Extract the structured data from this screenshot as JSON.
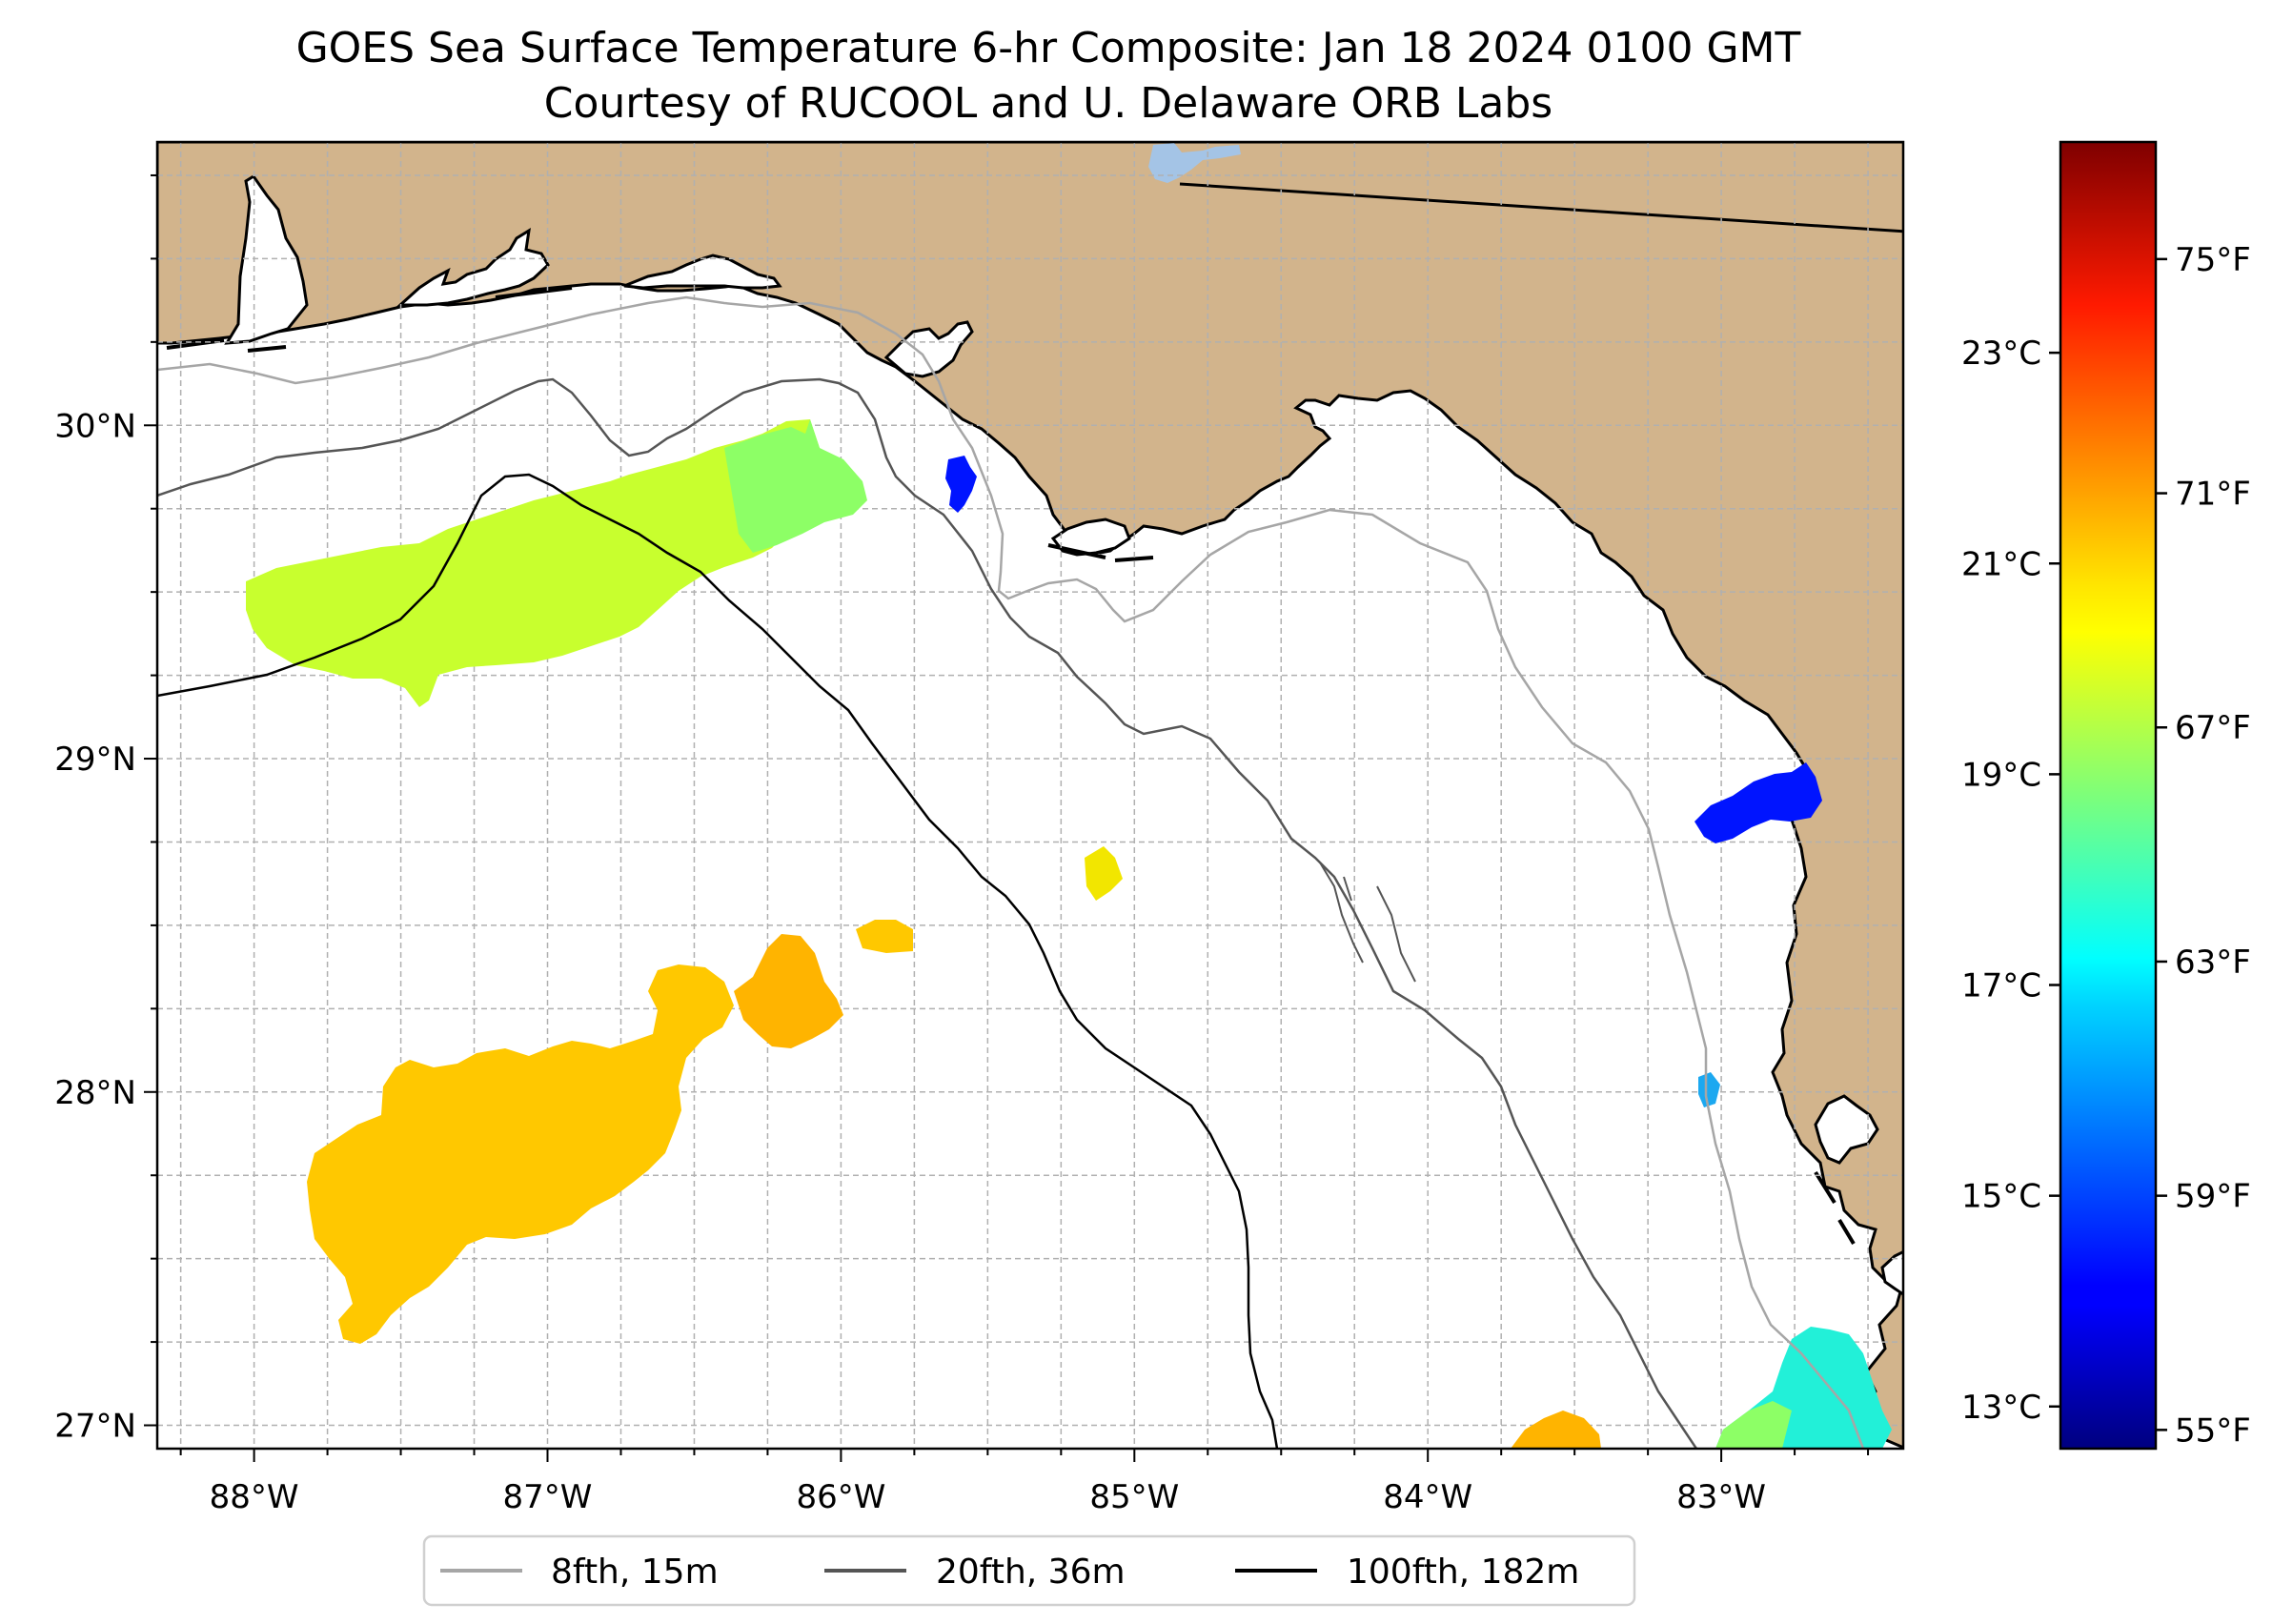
{
  "title": {
    "line1": "GOES Sea Surface Temperature 6-hr Composite: Jan 18 2024 0100 GMT",
    "line2": "Courtesy of RUCOOL and U. Delaware ORB Labs"
  },
  "map": {
    "extent": {
      "lon_min": -88.33,
      "lon_max": -82.38,
      "lat_min": 26.93,
      "lat_max": 30.85
    },
    "land_color": "#d2b48c",
    "ocean_color": "#ffffff",
    "gridlines": true,
    "lon_ticks": [
      {
        "value": -88,
        "label": "88°W"
      },
      {
        "value": -87,
        "label": "87°W"
      },
      {
        "value": -86,
        "label": "86°W"
      },
      {
        "value": -85,
        "label": "85°W"
      },
      {
        "value": -84,
        "label": "84°W"
      },
      {
        "value": -83,
        "label": "83°W"
      }
    ],
    "lat_ticks": [
      {
        "value": 27,
        "label": "27°N"
      },
      {
        "value": 28,
        "label": "28°N"
      },
      {
        "value": 29,
        "label": "29°N"
      },
      {
        "value": 30,
        "label": "30°N"
      }
    ]
  },
  "legend": {
    "placement": "bottom-center",
    "entries": [
      {
        "label": "8fth, 15m",
        "color": "#a6a6a6"
      },
      {
        "label": "20fth, 36m",
        "color": "#555555"
      },
      {
        "label": "100fth, 182m",
        "color": "#000000"
      }
    ]
  },
  "colorbar": {
    "colormap": "jet",
    "celsius_range": [
      12.6,
      25.0
    ],
    "celsius_ticks": [
      {
        "value": 13,
        "label": "13°C"
      },
      {
        "value": 15,
        "label": "15°C"
      },
      {
        "value": 17,
        "label": "17°C"
      },
      {
        "value": 19,
        "label": "19°C"
      },
      {
        "value": 21,
        "label": "21°C"
      },
      {
        "value": 23,
        "label": "23°C"
      }
    ],
    "fahrenheit_ticks": [
      {
        "value": 55,
        "label": "55°F"
      },
      {
        "value": 59,
        "label": "59°F"
      },
      {
        "value": 63,
        "label": "63°F"
      },
      {
        "value": 67,
        "label": "67°F"
      },
      {
        "value": 71,
        "label": "71°F"
      },
      {
        "value": 75,
        "label": "75°F"
      }
    ]
  },
  "sst_patches": [
    {
      "region": "northwest-shelf",
      "temp_f": 67.5,
      "color": "#c8ff2e"
    },
    {
      "region": "east-of-northwest-shelf",
      "temp_f": 66.2,
      "color": "#8dff66"
    },
    {
      "region": "southwest-gulf",
      "temp_f": 70.0,
      "color": "#ffc800"
    },
    {
      "region": "south-center",
      "temp_f": 70.5,
      "color": "#ffb400"
    },
    {
      "region": "small-central",
      "temp_f": 69.0,
      "color": "#f2e600"
    },
    {
      "region": "cape-san-blas",
      "temp_f": 57.5,
      "color": "#0014ff"
    },
    {
      "region": "big-bend-coast",
      "temp_f": 57.5,
      "color": "#0014ff"
    },
    {
      "region": "tampa-offshore",
      "temp_f": 61.5,
      "color": "#1ca8f0"
    },
    {
      "region": "tampa-bay-shelf",
      "temp_f": 63.5,
      "color": "#22f0d8"
    }
  ]
}
